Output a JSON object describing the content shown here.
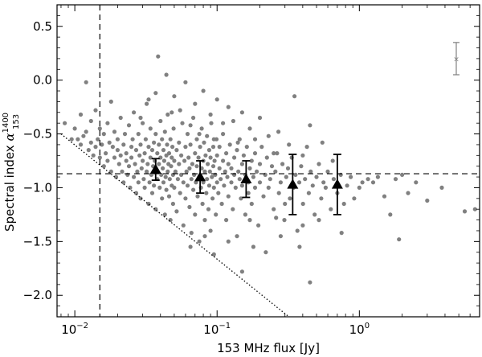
{
  "chart_data": {
    "type": "scatter",
    "xlabel": "153 MHz flux [Jy]",
    "ylabel": {
      "prefix": "Spectral index ",
      "symbol": "α",
      "superscript": "1400",
      "subscript": "153"
    },
    "x_scale": "log",
    "xlim": [
      0.0075,
      7.0
    ],
    "ylim": [
      -2.2,
      0.7
    ],
    "x_ticks": [
      {
        "value": 0.01,
        "label_base": "10",
        "label_exp": "−2"
      },
      {
        "value": 0.1,
        "label_base": "10",
        "label_exp": "−1"
      },
      {
        "value": 1.0,
        "label_base": "10",
        "label_exp": "0"
      }
    ],
    "y_ticks": [
      {
        "value": 0.5,
        "label": "0.5"
      },
      {
        "value": 0.0,
        "label": "0.0"
      },
      {
        "value": -0.5,
        "label": "−0.5"
      },
      {
        "value": -1.0,
        "label": "−1.0"
      },
      {
        "value": -1.5,
        "label": "−1.5"
      },
      {
        "value": -2.0,
        "label": "−2.0"
      }
    ],
    "grid": false,
    "colors": {
      "points": "#808080",
      "binned": "#000000",
      "errorbar_example": "#808080",
      "lines": "#000000"
    },
    "reference_lines": {
      "horizontal_dashed_y": -0.87,
      "vertical_dashed_x": 0.015,
      "completeness_limit": {
        "x_start": 0.008,
        "y_start": -0.5,
        "x_end": 0.32,
        "y_end": -2.2,
        "style": "dotted"
      }
    },
    "typical_errorbar": {
      "x": 4.8,
      "y": 0.2,
      "y_err": 0.15
    },
    "binned_points": [
      {
        "x": 0.037,
        "y": -0.83,
        "y_err": 0.1
      },
      {
        "x": 0.076,
        "y": -0.9,
        "y_err": 0.15
      },
      {
        "x": 0.16,
        "y": -0.92,
        "y_err": 0.17
      },
      {
        "x": 0.34,
        "y": -0.97,
        "y_err": 0.28
      },
      {
        "x": 0.7,
        "y": -0.97,
        "y_err": 0.28
      }
    ],
    "scatter_points": [
      [
        0.0085,
        -0.4
      ],
      [
        0.0095,
        -0.55
      ],
      [
        0.01,
        -0.45
      ],
      [
        0.0105,
        -0.55
      ],
      [
        0.011,
        -0.6
      ],
      [
        0.011,
        -0.32
      ],
      [
        0.0115,
        -0.52
      ],
      [
        0.012,
        -0.02
      ],
      [
        0.012,
        -0.48
      ],
      [
        0.0125,
        -0.65
      ],
      [
        0.013,
        -0.58
      ],
      [
        0.013,
        -0.38
      ],
      [
        0.0135,
        -0.7
      ],
      [
        0.014,
        -0.62
      ],
      [
        0.014,
        -0.28
      ],
      [
        0.0145,
        -0.55
      ],
      [
        0.015,
        -0.45
      ],
      [
        0.015,
        -0.72
      ],
      [
        0.0155,
        -0.6
      ],
      [
        0.016,
        -0.8
      ],
      [
        0.016,
        -0.5
      ],
      [
        0.0165,
        -0.68
      ],
      [
        0.017,
        -0.4
      ],
      [
        0.017,
        -0.75
      ],
      [
        0.0175,
        -0.58
      ],
      [
        0.018,
        -0.85
      ],
      [
        0.018,
        -0.2
      ],
      [
        0.0185,
        -0.62
      ],
      [
        0.019,
        -0.72
      ],
      [
        0.019,
        -0.48
      ],
      [
        0.0195,
        -0.9
      ],
      [
        0.02,
        -0.65
      ],
      [
        0.02,
        -0.55
      ],
      [
        0.0205,
        -0.78
      ],
      [
        0.021,
        -0.35
      ],
      [
        0.021,
        -0.7
      ],
      [
        0.0215,
        -0.85
      ],
      [
        0.022,
        -0.6
      ],
      [
        0.022,
        -0.95
      ],
      [
        0.0225,
        -0.5
      ],
      [
        0.023,
        -0.75
      ],
      [
        0.023,
        -0.68
      ],
      [
        0.0235,
        -0.88
      ],
      [
        0.024,
        -0.42
      ],
      [
        0.024,
        -0.8
      ],
      [
        0.0245,
        -1.0
      ],
      [
        0.025,
        -0.62
      ],
      [
        0.025,
        -0.72
      ],
      [
        0.0255,
        -0.55
      ],
      [
        0.026,
        -0.9
      ],
      [
        0.026,
        -0.3
      ],
      [
        0.0265,
        -0.78
      ],
      [
        0.027,
        -1.05
      ],
      [
        0.027,
        -0.65
      ],
      [
        0.0275,
        -0.85
      ],
      [
        0.028,
        -0.5
      ],
      [
        0.028,
        -0.95
      ],
      [
        0.0285,
        -0.7
      ],
      [
        0.029,
        -0.6
      ],
      [
        0.029,
        -1.1
      ],
      [
        0.0295,
        -0.82
      ],
      [
        0.03,
        -0.4
      ],
      [
        0.03,
        -0.75
      ],
      [
        0.0305,
        -0.92
      ],
      [
        0.031,
        -0.68
      ],
      [
        0.031,
        -1.0
      ],
      [
        0.0315,
        -0.55
      ],
      [
        0.032,
        -0.85
      ],
      [
        0.032,
        -0.22
      ],
      [
        0.0325,
        -0.78
      ],
      [
        0.033,
        -1.15
      ],
      [
        0.033,
        -0.62
      ],
      [
        0.0335,
        -0.95
      ],
      [
        0.034,
        -0.72
      ],
      [
        0.034,
        -0.45
      ],
      [
        0.0345,
        -0.88
      ],
      [
        0.035,
        -1.05
      ],
      [
        0.035,
        -0.65
      ],
      [
        0.0355,
        -0.8
      ],
      [
        0.036,
        -0.58
      ],
      [
        0.036,
        -0.98
      ],
      [
        0.0365,
        -0.75
      ],
      [
        0.037,
        -0.5
      ],
      [
        0.037,
        -1.2
      ],
      [
        0.0375,
        -0.85
      ],
      [
        0.038,
        -0.68
      ],
      [
        0.038,
        -0.92
      ],
      [
        0.0385,
        0.22
      ],
      [
        0.039,
        -0.78
      ],
      [
        0.039,
        -0.6
      ],
      [
        0.0395,
        -1.0
      ],
      [
        0.04,
        -0.72
      ],
      [
        0.04,
        -0.38
      ],
      [
        0.0405,
        -0.88
      ],
      [
        0.041,
        -1.1
      ],
      [
        0.041,
        -0.55
      ],
      [
        0.0415,
        -0.82
      ],
      [
        0.042,
        -0.95
      ],
      [
        0.042,
        -0.65
      ],
      [
        0.0425,
        -0.75
      ],
      [
        0.043,
        -1.25
      ],
      [
        0.043,
        -0.48
      ],
      [
        0.0435,
        -0.9
      ],
      [
        0.044,
        -0.7
      ],
      [
        0.044,
        -1.02
      ],
      [
        0.0445,
        -0.6
      ],
      [
        0.045,
        -0.85
      ],
      [
        0.045,
        -0.32
      ],
      [
        0.0455,
        -0.78
      ],
      [
        0.046,
        -1.08
      ],
      [
        0.046,
        -0.68
      ],
      [
        0.0465,
        -0.92
      ],
      [
        0.047,
        -0.55
      ],
      [
        0.047,
        -1.3
      ],
      [
        0.0475,
        -0.8
      ],
      [
        0.048,
        -0.72
      ],
      [
        0.048,
        -0.98
      ],
      [
        0.0485,
        -0.62
      ],
      [
        0.049,
        -0.88
      ],
      [
        0.049,
        -1.15
      ],
      [
        0.0495,
        -0.45
      ],
      [
        0.05,
        -0.75
      ],
      [
        0.05,
        -1.0
      ],
      [
        0.051,
        -0.85
      ],
      [
        0.052,
        -0.65
      ],
      [
        0.052,
        -1.22
      ],
      [
        0.053,
        -0.92
      ],
      [
        0.054,
        -0.58
      ],
      [
        0.054,
        -0.78
      ],
      [
        0.055,
        -1.05
      ],
      [
        0.056,
        -0.7
      ],
      [
        0.056,
        -0.88
      ],
      [
        0.057,
        -0.4
      ],
      [
        0.058,
        -0.95
      ],
      [
        0.058,
        -1.35
      ],
      [
        0.059,
        -0.75
      ],
      [
        0.06,
        -0.62
      ],
      [
        0.06,
        -1.1
      ],
      [
        0.061,
        -0.85
      ],
      [
        0.062,
        -0.5
      ],
      [
        0.062,
        -0.98
      ],
      [
        0.063,
        -0.72
      ],
      [
        0.064,
        -1.18
      ],
      [
        0.064,
        -0.82
      ],
      [
        0.065,
        -0.6
      ],
      [
        0.066,
        -0.92
      ],
      [
        0.066,
        -1.42
      ],
      [
        0.067,
        -0.78
      ],
      [
        0.068,
        -0.35
      ],
      [
        0.068,
        -1.02
      ],
      [
        0.069,
        -0.88
      ],
      [
        0.07,
        -0.68
      ],
      [
        0.07,
        -1.25
      ],
      [
        0.071,
        -0.95
      ],
      [
        0.072,
        -0.55
      ],
      [
        0.072,
        -0.8
      ],
      [
        0.073,
        -1.08
      ],
      [
        0.074,
        -0.72
      ],
      [
        0.075,
        -0.9
      ],
      [
        0.075,
        -1.5
      ],
      [
        0.076,
        -0.62
      ],
      [
        0.077,
        -1.0
      ],
      [
        0.078,
        -0.82
      ],
      [
        0.078,
        -0.45
      ],
      [
        0.079,
        -1.15
      ],
      [
        0.08,
        -0.75
      ],
      [
        0.08,
        -0.95
      ],
      [
        0.081,
        -0.58
      ],
      [
        0.082,
        -1.3
      ],
      [
        0.082,
        -0.85
      ],
      [
        0.083,
        -0.7
      ],
      [
        0.084,
        -1.05
      ],
      [
        0.085,
        -0.92
      ],
      [
        0.085,
        -0.52
      ],
      [
        0.086,
        -0.78
      ],
      [
        0.087,
        -1.2
      ],
      [
        0.088,
        -0.65
      ],
      [
        0.088,
        -0.98
      ],
      [
        0.089,
        -0.85
      ],
      [
        0.09,
        -1.4
      ],
      [
        0.09,
        -0.72
      ],
      [
        0.091,
        -0.4
      ],
      [
        0.092,
        -0.9
      ],
      [
        0.093,
        -1.1
      ],
      [
        0.094,
        -0.62
      ],
      [
        0.094,
        -0.8
      ],
      [
        0.095,
        -1.0
      ],
      [
        0.096,
        -0.75
      ],
      [
        0.097,
        -0.88
      ],
      [
        0.098,
        -1.25
      ],
      [
        0.099,
        -0.55
      ],
      [
        0.1,
        -0.95
      ],
      [
        0.1,
        -0.7
      ],
      [
        0.102,
        -1.05
      ],
      [
        0.104,
        -0.82
      ],
      [
        0.104,
        -0.62
      ],
      [
        0.106,
        -0.92
      ],
      [
        0.108,
        -1.15
      ],
      [
        0.11,
        -0.75
      ],
      [
        0.11,
        -0.5
      ],
      [
        0.112,
        -0.98
      ],
      [
        0.114,
        -0.85
      ],
      [
        0.116,
        -1.3
      ],
      [
        0.116,
        -0.68
      ],
      [
        0.118,
        -0.9
      ],
      [
        0.12,
        -0.78
      ],
      [
        0.12,
        -1.08
      ],
      [
        0.123,
        -0.6
      ],
      [
        0.126,
        -0.95
      ],
      [
        0.126,
        -0.82
      ],
      [
        0.129,
        -1.2
      ],
      [
        0.132,
        -0.72
      ],
      [
        0.132,
        -0.88
      ],
      [
        0.135,
        -1.0
      ],
      [
        0.138,
        -0.65
      ],
      [
        0.138,
        -1.45
      ],
      [
        0.141,
        -0.85
      ],
      [
        0.144,
        -0.92
      ],
      [
        0.144,
        -0.55
      ],
      [
        0.147,
        -1.1
      ],
      [
        0.15,
        -0.78
      ],
      [
        0.15,
        -0.98
      ],
      [
        0.154,
        -0.7
      ],
      [
        0.158,
        -1.25
      ],
      [
        0.158,
        -0.88
      ],
      [
        0.162,
        -0.62
      ],
      [
        0.166,
        -0.95
      ],
      [
        0.166,
        -1.05
      ],
      [
        0.17,
        -0.82
      ],
      [
        0.175,
        -0.75
      ],
      [
        0.175,
        -1.15
      ],
      [
        0.18,
        -0.9
      ],
      [
        0.185,
        -0.68
      ],
      [
        0.185,
        -1.0
      ],
      [
        0.19,
        -0.85
      ],
      [
        0.195,
        -1.35
      ],
      [
        0.2,
        -0.78
      ],
      [
        0.2,
        -0.95
      ],
      [
        0.206,
        -0.62
      ],
      [
        0.212,
        -1.08
      ],
      [
        0.218,
        -0.88
      ],
      [
        0.224,
        -0.72
      ],
      [
        0.23,
        -1.0
      ],
      [
        0.236,
        -0.92
      ],
      [
        0.243,
        -0.8
      ],
      [
        0.25,
        -1.2
      ],
      [
        0.257,
        -0.85
      ],
      [
        0.264,
        -0.68
      ],
      [
        0.272,
        -1.05
      ],
      [
        0.28,
        -0.95
      ],
      [
        0.288,
        -0.78
      ],
      [
        0.297,
        -1.3
      ],
      [
        0.306,
        -0.9
      ],
      [
        0.315,
        -0.82
      ],
      [
        0.325,
        -1.1
      ],
      [
        0.335,
        -0.72
      ],
      [
        0.345,
        -1.0
      ],
      [
        0.356,
        -0.88
      ],
      [
        0.367,
        -1.4
      ],
      [
        0.378,
        -0.95
      ],
      [
        0.39,
        -0.8
      ],
      [
        0.402,
        -1.15
      ],
      [
        0.415,
        -0.92
      ],
      [
        0.428,
        -0.62
      ],
      [
        0.441,
        -1.05
      ],
      [
        0.455,
        -0.85
      ],
      [
        0.47,
        -0.98
      ],
      [
        0.485,
        -1.25
      ],
      [
        0.5,
        -0.9
      ],
      [
        0.52,
        -0.78
      ],
      [
        0.54,
        -1.1
      ],
      [
        0.56,
        -0.95
      ],
      [
        0.58,
        -1.0
      ],
      [
        0.6,
        -0.85
      ],
      [
        0.63,
        -1.2
      ],
      [
        0.66,
        -0.92
      ],
      [
        0.7,
        -1.05
      ],
      [
        0.74,
        -0.88
      ],
      [
        0.78,
        -1.15
      ],
      [
        0.82,
        -0.98
      ],
      [
        0.87,
        -0.9
      ],
      [
        0.92,
        -1.1
      ],
      [
        1.0,
        -1.0
      ],
      [
        1.05,
        -0.95
      ],
      [
        1.15,
        -0.92
      ],
      [
        1.25,
        -0.95
      ],
      [
        1.35,
        -0.9
      ],
      [
        1.5,
        -1.08
      ],
      [
        1.65,
        -1.25
      ],
      [
        1.8,
        -0.92
      ],
      [
        1.9,
        -1.48
      ],
      [
        2.0,
        -0.88
      ],
      [
        2.2,
        -1.05
      ],
      [
        2.5,
        -0.95
      ],
      [
        3.0,
        -1.12
      ],
      [
        3.8,
        -1.0
      ],
      [
        5.5,
        -1.22
      ],
      [
        6.5,
        -1.2
      ],
      [
        0.037,
        -0.12
      ],
      [
        0.06,
        -0.02
      ],
      [
        0.044,
        0.05
      ],
      [
        0.08,
        -0.1
      ],
      [
        0.1,
        -0.18
      ],
      [
        0.12,
        -0.25
      ],
      [
        0.15,
        -0.3
      ],
      [
        0.07,
        -0.22
      ],
      [
        0.05,
        -0.15
      ],
      [
        0.2,
        -0.35
      ],
      [
        0.35,
        -0.15
      ],
      [
        0.055,
        -0.28
      ],
      [
        0.09,
        -0.32
      ],
      [
        0.13,
        -0.38
      ],
      [
        0.27,
        -0.48
      ],
      [
        0.45,
        -0.42
      ],
      [
        0.065,
        -0.42
      ],
      [
        0.033,
        -0.18
      ],
      [
        0.17,
        -0.45
      ],
      [
        0.23,
        -0.52
      ],
      [
        0.55,
        -0.58
      ],
      [
        0.048,
        -0.3
      ],
      [
        0.11,
        -0.4
      ],
      [
        0.029,
        -0.35
      ],
      [
        0.075,
        -0.5
      ],
      [
        0.185,
        -0.55
      ],
      [
        0.32,
        -0.6
      ],
      [
        0.095,
        -0.55
      ],
      [
        0.14,
        -0.58
      ],
      [
        0.25,
        -0.68
      ],
      [
        0.4,
        -0.7
      ],
      [
        0.65,
        -0.75
      ],
      [
        0.082,
        -1.45
      ],
      [
        0.12,
        -1.5
      ],
      [
        0.18,
        -1.55
      ],
      [
        0.065,
        -1.55
      ],
      [
        0.22,
        -1.6
      ],
      [
        0.38,
        -1.55
      ],
      [
        0.28,
        -1.45
      ],
      [
        0.45,
        -1.88
      ],
      [
        0.15,
        -1.78
      ],
      [
        0.4,
        -1.35
      ],
      [
        0.52,
        -1.3
      ],
      [
        0.75,
        -1.42
      ],
      [
        0.26,
        -1.28
      ],
      [
        0.095,
        -1.62
      ],
      [
        0.3,
        -1.15
      ],
      [
        0.17,
        -1.3
      ]
    ]
  }
}
